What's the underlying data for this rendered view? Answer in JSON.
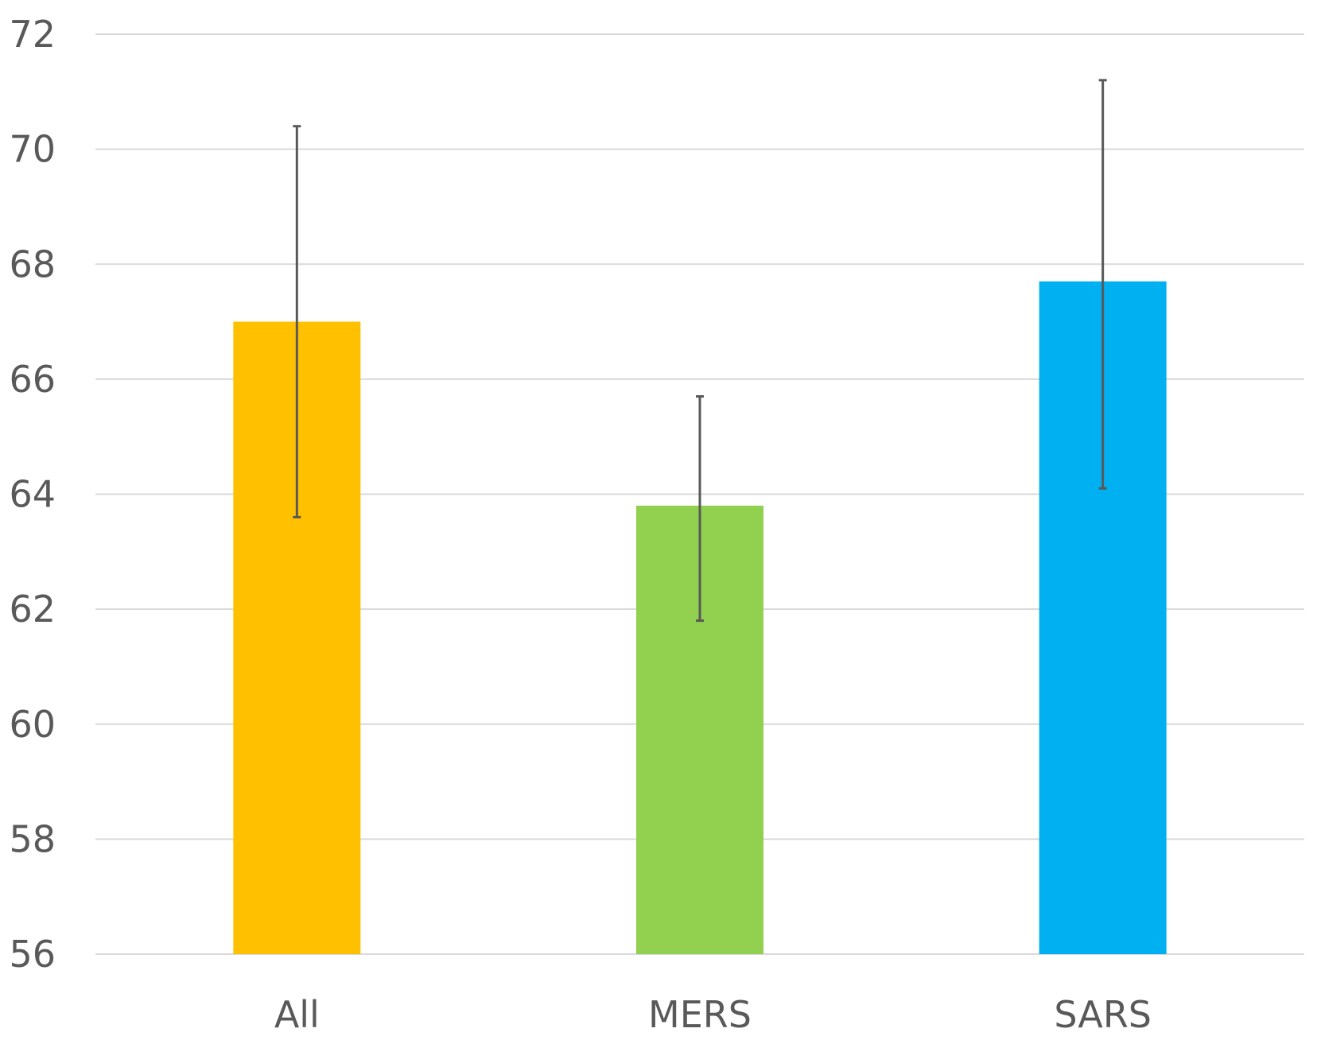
{
  "chart_data": {
    "type": "bar",
    "title": "",
    "xlabel": "",
    "ylabel": "",
    "categories": [
      "All",
      "MERS",
      "SARS"
    ],
    "values": [
      67.0,
      63.8,
      67.7
    ],
    "error_low": [
      63.6,
      61.8,
      64.1
    ],
    "error_high": [
      70.4,
      65.7,
      71.2
    ],
    "colors": [
      "#ffc000",
      "#92d050",
      "#00b0f0"
    ],
    "ylim": [
      56,
      72
    ],
    "yticks": [
      56,
      58,
      60,
      62,
      64,
      66,
      68,
      70,
      72
    ],
    "grid": true,
    "legend": "none"
  }
}
